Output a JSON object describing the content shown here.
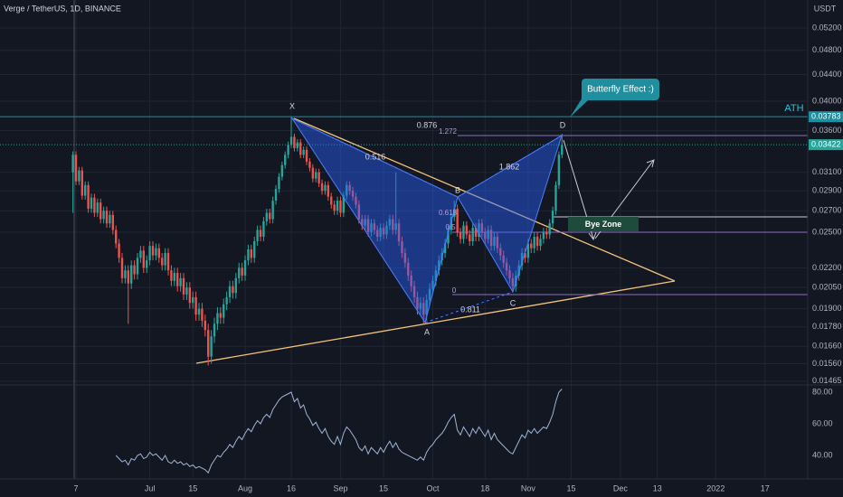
{
  "header": {
    "title": "Verge / TetherUS, 1D, BINANCE"
  },
  "chart_data": {
    "type": "candlestick",
    "x": [
      5,
      6,
      7,
      8,
      9,
      10,
      11,
      12,
      13,
      14,
      15,
      16,
      17,
      18,
      19,
      20,
      21,
      22,
      23,
      24,
      25,
      26,
      27,
      28,
      29,
      30,
      31,
      32,
      33,
      34,
      35,
      36,
      37,
      38,
      39,
      40,
      41,
      42,
      43,
      44,
      45,
      46,
      47,
      48,
      49,
      50,
      51,
      52,
      53,
      54,
      55,
      56,
      57,
      58,
      59,
      60,
      61,
      62,
      63,
      64,
      65,
      66,
      67,
      68,
      69,
      70,
      71,
      72,
      73,
      74,
      75,
      76,
      77,
      78,
      79,
      80,
      81,
      82,
      83,
      84,
      85,
      86,
      87,
      88,
      89,
      90,
      91,
      92,
      93,
      94,
      95,
      96,
      97,
      98,
      99,
      100,
      101,
      102,
      103,
      104,
      105,
      106,
      107,
      108,
      109,
      110,
      111,
      112,
      113,
      114,
      115,
      116,
      117,
      118,
      119,
      120,
      121,
      122,
      123,
      124,
      125,
      126,
      127,
      128,
      129,
      130,
      131,
      132,
      133,
      134,
      135,
      136,
      137,
      138,
      139,
      140,
      141,
      142,
      143,
      144,
      145,
      146,
      147,
      148,
      149,
      150,
      151,
      152,
      153,
      154,
      155,
      156,
      157,
      158,
      159,
      160,
      161,
      162,
      163,
      164
    ],
    "open": [
      0.031,
      0.033,
      0.03,
      0.0312,
      0.0285,
      0.0296,
      0.0272,
      0.0283,
      0.0268,
      0.0278,
      0.0262,
      0.027,
      0.0258,
      0.0266,
      0.0252,
      0.024,
      0.0228,
      0.0212,
      0.0218,
      0.0208,
      0.0222,
      0.0215,
      0.0228,
      0.0234,
      0.022,
      0.0226,
      0.0238,
      0.023,
      0.0236,
      0.0228,
      0.0222,
      0.0232,
      0.0218,
      0.021,
      0.0216,
      0.0206,
      0.0212,
      0.02,
      0.0205,
      0.0194,
      0.0198,
      0.0186,
      0.019,
      0.0182,
      0.0176,
      0.016,
      0.0172,
      0.018,
      0.0187,
      0.0184,
      0.0193,
      0.0198,
      0.0206,
      0.0201,
      0.0212,
      0.022,
      0.0214,
      0.0226,
      0.0235,
      0.0228,
      0.0242,
      0.0252,
      0.0246,
      0.026,
      0.0268,
      0.0262,
      0.028,
      0.0292,
      0.0305,
      0.0318,
      0.033,
      0.0342,
      0.0352,
      0.0338,
      0.0345,
      0.033,
      0.0336,
      0.0322,
      0.0315,
      0.0303,
      0.031,
      0.0298,
      0.029,
      0.0296,
      0.0284,
      0.0276,
      0.027,
      0.028,
      0.0268,
      0.0285,
      0.0296,
      0.029,
      0.0284,
      0.0276,
      0.0262,
      0.0256,
      0.0262,
      0.025,
      0.0258,
      0.0252,
      0.0246,
      0.0254,
      0.0248,
      0.0256,
      0.0262,
      0.0252,
      0.0258,
      0.0242,
      0.0232,
      0.0224,
      0.0214,
      0.0206,
      0.0198,
      0.019,
      0.0194,
      0.0186,
      0.0196,
      0.0204,
      0.021,
      0.0218,
      0.0226,
      0.0232,
      0.024,
      0.0252,
      0.0264,
      0.0272,
      0.025,
      0.0244,
      0.0256,
      0.0248,
      0.0242,
      0.0254,
      0.0246,
      0.0258,
      0.025,
      0.0244,
      0.0252,
      0.0238,
      0.0246,
      0.0236,
      0.023,
      0.0224,
      0.0218,
      0.0212,
      0.0206,
      0.0214,
      0.0222,
      0.0232,
      0.0228,
      0.024,
      0.0236,
      0.0246,
      0.0238,
      0.0244,
      0.025,
      0.0248,
      0.0258,
      0.027,
      0.0296,
      0.033
    ],
    "high": [
      0.0334,
      0.0334,
      0.0316,
      0.0316,
      0.03,
      0.03,
      0.0287,
      0.0287,
      0.0282,
      0.0282,
      0.0274,
      0.0274,
      0.027,
      0.027,
      0.0256,
      0.0244,
      0.0232,
      0.0222,
      0.0222,
      0.0226,
      0.0226,
      0.0232,
      0.0238,
      0.0238,
      0.023,
      0.0242,
      0.0242,
      0.024,
      0.024,
      0.0232,
      0.0236,
      0.0236,
      0.0222,
      0.022,
      0.022,
      0.0216,
      0.0216,
      0.0209,
      0.0209,
      0.0202,
      0.0202,
      0.0194,
      0.0194,
      0.0186,
      0.018,
      0.0176,
      0.0184,
      0.0191,
      0.0191,
      0.0197,
      0.0202,
      0.021,
      0.021,
      0.0216,
      0.0224,
      0.0224,
      0.023,
      0.0239,
      0.0239,
      0.0246,
      0.0256,
      0.0256,
      0.0264,
      0.0272,
      0.0272,
      0.0284,
      0.0296,
      0.0309,
      0.0322,
      0.0334,
      0.0346,
      0.03783,
      0.0356,
      0.0349,
      0.0349,
      0.034,
      0.034,
      0.0326,
      0.0319,
      0.0314,
      0.0314,
      0.0302,
      0.03,
      0.03,
      0.0288,
      0.028,
      0.0284,
      0.0284,
      0.0289,
      0.03,
      0.03,
      0.0294,
      0.0288,
      0.028,
      0.0266,
      0.0266,
      0.0266,
      0.0262,
      0.0262,
      0.0256,
      0.0258,
      0.0258,
      0.026,
      0.0266,
      0.0266,
      0.031,
      0.0262,
      0.0246,
      0.0236,
      0.0228,
      0.0218,
      0.021,
      0.0202,
      0.0198,
      0.0198,
      0.02,
      0.0208,
      0.0214,
      0.0222,
      0.023,
      0.0236,
      0.0244,
      0.0256,
      0.0268,
      0.028,
      0.0276,
      0.0254,
      0.026,
      0.026,
      0.0252,
      0.0258,
      0.0258,
      0.0262,
      0.0262,
      0.0254,
      0.0256,
      0.0256,
      0.025,
      0.025,
      0.024,
      0.0234,
      0.0228,
      0.0222,
      0.0216,
      0.0218,
      0.0226,
      0.0236,
      0.0236,
      0.0244,
      0.0244,
      0.025,
      0.025,
      0.0248,
      0.0254,
      0.0254,
      0.0262,
      0.0274,
      0.03,
      0.0334,
      0.0356
    ],
    "low": [
      0.0268,
      0.0296,
      0.0296,
      0.0281,
      0.0281,
      0.0268,
      0.0268,
      0.0264,
      0.0264,
      0.0258,
      0.0258,
      0.0254,
      0.0254,
      0.0248,
      0.0236,
      0.0224,
      0.0208,
      0.0208,
      0.018,
      0.0204,
      0.0211,
      0.0211,
      0.0224,
      0.0216,
      0.0216,
      0.0222,
      0.0226,
      0.0226,
      0.0224,
      0.0218,
      0.0218,
      0.0214,
      0.0206,
      0.0206,
      0.0202,
      0.0202,
      0.0196,
      0.0196,
      0.019,
      0.019,
      0.0182,
      0.0182,
      0.0178,
      0.0172,
      0.0155,
      0.0156,
      0.0168,
      0.0176,
      0.018,
      0.018,
      0.0189,
      0.0194,
      0.0197,
      0.0197,
      0.0208,
      0.021,
      0.021,
      0.0222,
      0.0224,
      0.0224,
      0.0238,
      0.0242,
      0.0242,
      0.0256,
      0.0258,
      0.0258,
      0.0276,
      0.0288,
      0.0301,
      0.0314,
      0.0326,
      0.0338,
      0.0334,
      0.0334,
      0.0326,
      0.0326,
      0.0318,
      0.0311,
      0.0299,
      0.0299,
      0.0294,
      0.0286,
      0.0286,
      0.028,
      0.0272,
      0.0266,
      0.0266,
      0.0264,
      0.0264,
      0.0281,
      0.0286,
      0.028,
      0.0272,
      0.0258,
      0.0252,
      0.0252,
      0.0246,
      0.0246,
      0.0248,
      0.0242,
      0.0242,
      0.0244,
      0.0244,
      0.0252,
      0.0248,
      0.0248,
      0.0238,
      0.0228,
      0.022,
      0.021,
      0.0202,
      0.0194,
      0.0186,
      0.0186,
      0.018,
      0.0182,
      0.0192,
      0.02,
      0.0206,
      0.0214,
      0.0222,
      0.0228,
      0.0236,
      0.0248,
      0.026,
      0.0246,
      0.024,
      0.024,
      0.0244,
      0.0238,
      0.0238,
      0.0242,
      0.0242,
      0.0246,
      0.024,
      0.024,
      0.0234,
      0.0234,
      0.0232,
      0.0226,
      0.022,
      0.0214,
      0.0208,
      0.0202,
      0.0202,
      0.021,
      0.0218,
      0.0224,
      0.0224,
      0.0232,
      0.0232,
      0.0234,
      0.0234,
      0.024,
      0.0244,
      0.0244,
      0.0254,
      0.0266,
      0.0292,
      0.0326
    ],
    "close": [
      0.033,
      0.03,
      0.0312,
      0.0285,
      0.0296,
      0.0272,
      0.0283,
      0.0268,
      0.0278,
      0.0262,
      0.027,
      0.0258,
      0.0266,
      0.0252,
      0.024,
      0.0228,
      0.0212,
      0.0218,
      0.0208,
      0.0222,
      0.0215,
      0.0228,
      0.0234,
      0.022,
      0.0226,
      0.0238,
      0.023,
      0.0236,
      0.0228,
      0.0222,
      0.0232,
      0.0218,
      0.021,
      0.0216,
      0.0206,
      0.0212,
      0.02,
      0.0205,
      0.0194,
      0.0198,
      0.0186,
      0.019,
      0.0182,
      0.0176,
      0.016,
      0.0172,
      0.018,
      0.0187,
      0.0184,
      0.0193,
      0.0198,
      0.0206,
      0.0201,
      0.0212,
      0.022,
      0.0214,
      0.0226,
      0.0235,
      0.0228,
      0.0242,
      0.0252,
      0.0246,
      0.026,
      0.0268,
      0.0262,
      0.028,
      0.0292,
      0.0305,
      0.0318,
      0.033,
      0.0342,
      0.0352,
      0.0338,
      0.0345,
      0.033,
      0.0336,
      0.0322,
      0.0315,
      0.0303,
      0.031,
      0.0298,
      0.029,
      0.0296,
      0.0284,
      0.0276,
      0.027,
      0.028,
      0.0268,
      0.0285,
      0.0296,
      0.029,
      0.0284,
      0.0276,
      0.0262,
      0.0256,
      0.0262,
      0.025,
      0.0258,
      0.0252,
      0.0246,
      0.0254,
      0.0248,
      0.0256,
      0.0262,
      0.0252,
      0.0258,
      0.0242,
      0.0232,
      0.0224,
      0.0214,
      0.0206,
      0.0198,
      0.019,
      0.0194,
      0.0186,
      0.0196,
      0.0204,
      0.021,
      0.0218,
      0.0226,
      0.0232,
      0.024,
      0.0252,
      0.0264,
      0.0272,
      0.025,
      0.0244,
      0.0256,
      0.0248,
      0.0242,
      0.0254,
      0.0246,
      0.0258,
      0.025,
      0.0244,
      0.0252,
      0.0238,
      0.0246,
      0.0236,
      0.023,
      0.0224,
      0.0218,
      0.0212,
      0.0206,
      0.0214,
      0.0222,
      0.0232,
      0.0228,
      0.024,
      0.0236,
      0.0246,
      0.0238,
      0.0244,
      0.025,
      0.0248,
      0.0258,
      0.027,
      0.0296,
      0.033,
      0.0342
    ],
    "up_color": "#26a69a",
    "down_color": "#ef5350",
    "xlim": [
      -18.7,
      243.9
    ],
    "xticks": [
      {
        "value": 6,
        "label": "7"
      },
      {
        "value": 30,
        "label": "Jul"
      },
      {
        "value": 44,
        "label": "15"
      },
      {
        "value": 61,
        "label": "Aug"
      },
      {
        "value": 76,
        "label": "16"
      },
      {
        "value": 92,
        "label": "Sep"
      },
      {
        "value": 106,
        "label": "15"
      },
      {
        "value": 122,
        "label": "Oct"
      },
      {
        "value": 139,
        "label": "18"
      },
      {
        "value": 153,
        "label": "Nov"
      },
      {
        "value": 167,
        "label": "15"
      },
      {
        "value": 183,
        "label": "Dec"
      },
      {
        "value": 195,
        "label": "13"
      },
      {
        "value": 214,
        "label": "2022"
      },
      {
        "value": 230,
        "label": "17"
      }
    ],
    "ylim": [
      0.0145,
      0.0575
    ],
    "log_scale": true,
    "y_unit": "USDT",
    "yticks": [
      {
        "value": 0.052,
        "label": "0.05200"
      },
      {
        "value": 0.048,
        "label": "0.04800"
      },
      {
        "value": 0.044,
        "label": "0.04400"
      },
      {
        "value": 0.04,
        "label": "0.04000"
      },
      {
        "value": 0.036,
        "label": "0.03600"
      },
      {
        "value": 0.031,
        "label": "0.03100"
      },
      {
        "value": 0.029,
        "label": "0.02900"
      },
      {
        "value": 0.027,
        "label": "0.02700"
      },
      {
        "value": 0.025,
        "label": "0.02500"
      },
      {
        "value": 0.022,
        "label": "0.02200"
      },
      {
        "value": 0.0205,
        "label": "0.02050"
      },
      {
        "value": 0.019,
        "label": "0.01900"
      },
      {
        "value": 0.0178,
        "label": "0.01780"
      },
      {
        "value": 0.0166,
        "label": "0.01660"
      },
      {
        "value": 0.0156,
        "label": "0.01560"
      },
      {
        "value": 0.01465,
        "label": "0.01465"
      }
    ],
    "grid": true,
    "price_tags": [
      {
        "value": 0.03783,
        "label": "0.03783",
        "color": "#1e8fa0"
      },
      {
        "value": 0.03422,
        "label": "0.03422",
        "color": "#26a69a"
      }
    ],
    "rsi": {
      "color": "#9fb4d6",
      "ylim": [
        26.3,
        84
      ],
      "yticks": [
        {
          "value": 80,
          "label": "80.00"
        },
        {
          "value": 60,
          "label": "60.00"
        },
        {
          "value": 40,
          "label": "40.00"
        }
      ],
      "values": [
        null,
        null,
        null,
        null,
        null,
        null,
        null,
        null,
        null,
        null,
        null,
        null,
        null,
        null,
        40,
        38,
        36,
        37,
        34,
        38,
        37,
        40,
        41,
        38,
        39,
        42,
        40,
        41,
        39,
        37,
        40,
        36,
        35,
        37,
        35,
        36,
        34,
        35,
        33,
        34,
        32,
        33,
        32,
        31,
        29,
        34,
        37,
        40,
        39,
        42,
        44,
        47,
        45,
        49,
        52,
        50,
        54,
        57,
        55,
        59,
        62,
        60,
        64,
        66,
        64,
        69,
        72,
        75,
        77,
        78,
        79,
        80,
        74,
        76,
        70,
        72,
        66,
        63,
        59,
        61,
        57,
        54,
        57,
        52,
        49,
        47,
        52,
        47,
        54,
        58,
        56,
        53,
        50,
        45,
        43,
        46,
        41,
        45,
        43,
        41,
        45,
        42,
        46,
        49,
        45,
        48,
        44,
        42,
        41,
        40,
        39,
        38,
        37,
        39,
        37,
        42,
        45,
        47,
        50,
        52,
        54,
        57,
        61,
        64,
        66,
        56,
        53,
        58,
        55,
        52,
        57,
        54,
        58,
        55,
        52,
        56,
        50,
        54,
        50,
        48,
        46,
        44,
        42,
        41,
        45,
        49,
        53,
        51,
        56,
        54,
        57,
        54,
        56,
        58,
        57,
        61,
        66,
        74,
        80,
        82
      ]
    },
    "annotations": {
      "ath": "ATH",
      "callout": "Butterfly Effect :)",
      "zone": "Bye Zone",
      "x": "X",
      "a": "A",
      "b": "B",
      "c": "C",
      "d": "D",
      "r0876": "0.876",
      "r1272": "1.272",
      "r0516": "0.516",
      "r1862": "1.862",
      "r0618": "0.618",
      "r05": "0.5",
      "r0": "0",
      "r0811": "0.811"
    }
  }
}
